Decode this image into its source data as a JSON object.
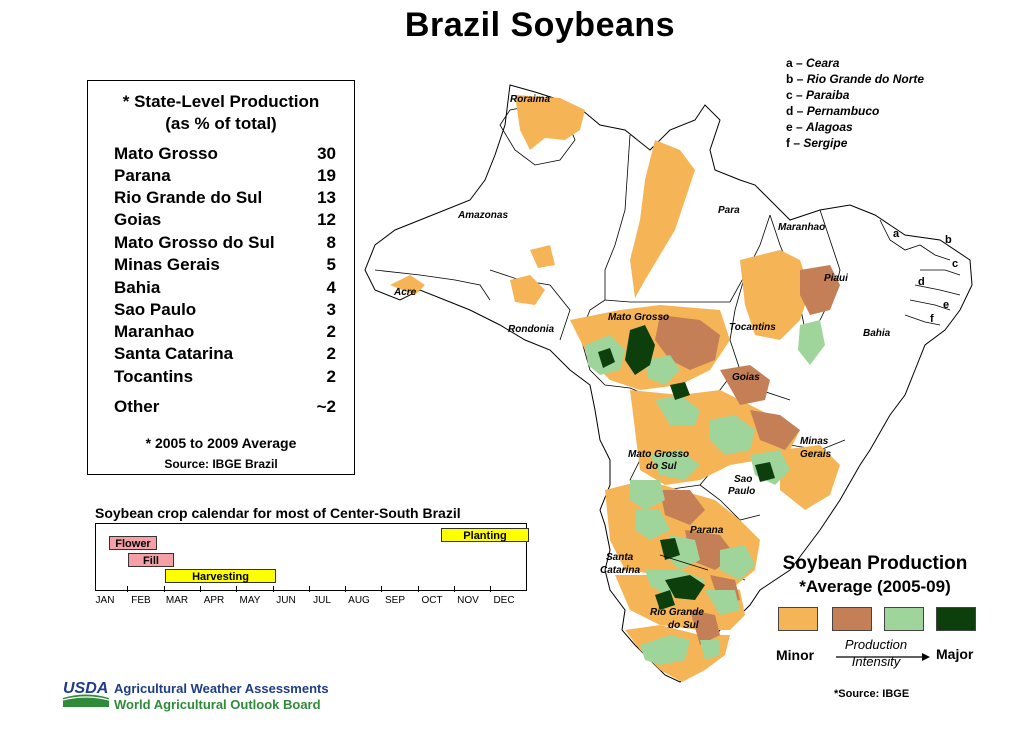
{
  "title": "Brazil Soybeans",
  "production_table": {
    "heading_line1": "* State-Level Production",
    "heading_line2": "(as % of total)",
    "rows": [
      {
        "state": "Mato Grosso",
        "value": "30"
      },
      {
        "state": "Parana",
        "value": "19"
      },
      {
        "state": "Rio Grande do Sul",
        "value": "13"
      },
      {
        "state": "Goias",
        "value": "12"
      },
      {
        "state": "Mato Grosso do Sul",
        "value": "8"
      },
      {
        "state": "Minas Gerais",
        "value": "5"
      },
      {
        "state": "Bahia",
        "value": "4"
      },
      {
        "state": "Sao Paulo",
        "value": "3"
      },
      {
        "state": "Maranhao",
        "value": "2"
      },
      {
        "state": "Santa Catarina",
        "value": "2"
      },
      {
        "state": "Tocantins",
        "value": "2"
      },
      {
        "state": "Other",
        "value": "~2"
      }
    ],
    "note": "* 2005 to 2009 Average",
    "source": "Source: IBGE Brazil"
  },
  "calendar": {
    "title": "Soybean crop calendar for most of Center-South Brazil",
    "bars": {
      "flower": "Flower",
      "fill": "Fill",
      "harvesting": "Harvesting",
      "planting": "Planting"
    },
    "months": {
      "m1": "JAN",
      "m2": "FEB",
      "m3": "MAR",
      "m4": "APR",
      "m5": "MAY",
      "m6": "JUN",
      "m7": "JUL",
      "m8": "AUG",
      "m9": "SEP",
      "m10": "OCT",
      "m11": "NOV",
      "m12": "DEC"
    }
  },
  "map_labels": {
    "roraima": "Roraima",
    "amazonas": "Amazonas",
    "para": "Para",
    "acre": "Acre",
    "rondonia": "Rondonia",
    "maranhao": "Maranhao",
    "piaui": "Piaui",
    "mato_grosso": "Mato Grosso",
    "tocantins": "Tocantins",
    "bahia": "Bahia",
    "goias": "Goias",
    "minas_gerais_1": "Minas",
    "minas_gerais_2": "Gerais",
    "mato_grosso_do_sul_1": "Mato Grosso",
    "mato_grosso_do_sul_2": "do Sul",
    "sao_paulo_1": "Sao",
    "sao_paulo_2": "Paulo",
    "parana": "Parana",
    "santa_catarina_1": "Santa",
    "santa_catarina_2": "Catarina",
    "rio_grande_do_sul_1": "Rio Grande",
    "rio_grande_do_sul_2": "do Sul",
    "a": "a",
    "b": "b",
    "c": "c",
    "d": "d",
    "e": "e",
    "f": "f"
  },
  "key_list": [
    {
      "letter": "a –",
      "state": "Ceara"
    },
    {
      "letter": "b –",
      "state": "Rio Grande do Norte"
    },
    {
      "letter": "c –",
      "state": "Paraiba"
    },
    {
      "letter": "d –",
      "state": "Pernambuco"
    },
    {
      "letter": "e –",
      "state": "Alagoas"
    },
    {
      "letter": "f –",
      "state": "Sergipe"
    }
  ],
  "legend": {
    "title": "Soybean Production",
    "subtitle": "*Average (2005-09)",
    "minor": "Minor",
    "major": "Major",
    "intensity_line1": "Production",
    "intensity_line2": "Intensity",
    "source": "*Source: IBGE",
    "colors": [
      "#f5b556",
      "#c47f57",
      "#9fd59b",
      "#0d3f0d"
    ]
  },
  "footer": {
    "logo_text": "USDA",
    "line1": "Agricultural Weather Assessments",
    "line2": "World Agricultural Outlook Board"
  }
}
